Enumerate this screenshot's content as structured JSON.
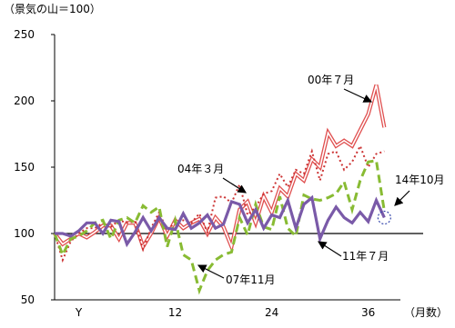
{
  "chart_data": {
    "type": "line",
    "unit_label": "（景気の山＝100）",
    "xlabel": "（月数）",
    "ylim": [
      50,
      250
    ],
    "yticks": [
      50,
      100,
      150,
      200,
      250
    ],
    "xticks": [
      {
        "x": 0,
        "label": "Y"
      },
      {
        "x": 12,
        "label": "12"
      },
      {
        "x": 24,
        "label": "24"
      },
      {
        "x": 36,
        "label": "36"
      }
    ],
    "xlim": [
      -3,
      40
    ],
    "series": [
      {
        "name": "00年７月",
        "style": "double",
        "color": "#e05050",
        "x": [
          -3,
          -2,
          -1,
          0,
          1,
          2,
          3,
          4,
          5,
          6,
          7,
          8,
          9,
          10,
          11,
          12,
          13,
          14,
          15,
          16,
          17,
          18,
          19,
          20,
          21,
          22,
          23,
          24,
          25,
          26,
          27,
          28,
          29,
          30,
          31,
          32,
          33,
          34,
          35,
          36,
          37,
          38
        ],
        "values": [
          100,
          92,
          96,
          100,
          97,
          101,
          106,
          106,
          96,
          108,
          108,
          90,
          100,
          112,
          98,
          110,
          104,
          108,
          111,
          100,
          112,
          105,
          90,
          118,
          124,
          108,
          128,
          116,
          134,
          128,
          145,
          140,
          156,
          150,
          176,
          166,
          170,
          166,
          178,
          190,
          212,
          180
        ]
      },
      {
        "name": "04年３月",
        "style": "dotted",
        "color": "#cc3333",
        "x": [
          -3,
          -2,
          -1,
          0,
          1,
          2,
          3,
          4,
          5,
          6,
          7,
          8,
          9,
          10,
          11,
          12,
          13,
          14,
          15,
          16,
          17,
          18,
          19,
          20,
          21,
          22,
          23,
          24,
          25,
          26,
          27,
          28,
          29,
          30,
          31,
          32,
          33,
          34,
          35,
          36,
          37,
          38
        ],
        "values": [
          100,
          80,
          94,
          100,
          104,
          104,
          108,
          105,
          110,
          108,
          109,
          88,
          104,
          116,
          102,
          109,
          110,
          108,
          115,
          101,
          127,
          128,
          123,
          137,
          114,
          120,
          130,
          132,
          145,
          135,
          148,
          145,
          162,
          140,
          160,
          162,
          148,
          154,
          166,
          150,
          160,
          162
        ]
      },
      {
        "name": "07年11月",
        "style": "dashed",
        "color": "#88bb33",
        "x": [
          -3,
          -2,
          -1,
          0,
          1,
          2,
          3,
          4,
          5,
          6,
          7,
          8,
          9,
          10,
          11,
          12,
          13,
          14,
          15,
          16,
          17,
          18,
          19,
          20,
          21,
          22,
          23,
          24,
          25,
          26,
          27,
          28,
          29,
          30,
          31,
          32,
          33,
          34,
          35,
          36,
          37,
          38
        ],
        "values": [
          100,
          84,
          96,
          98,
          102,
          108,
          110,
          96,
          110,
          112,
          108,
          121,
          116,
          120,
          90,
          110,
          84,
          80,
          57,
          72,
          80,
          84,
          86,
          112,
          99,
          122,
          105,
          103,
          128,
          104,
          98,
          129,
          126,
          125,
          127,
          130,
          139,
          118,
          140,
          154,
          155,
          117
        ]
      },
      {
        "name": "11年７月",
        "style": "solid",
        "color": "#7a5aa8",
        "x": [
          -3,
          -2,
          -1,
          0,
          1,
          2,
          3,
          4,
          5,
          6,
          7,
          8,
          9,
          10,
          11,
          12,
          13,
          14,
          15,
          16,
          17,
          18,
          19,
          20,
          21,
          22,
          23,
          24,
          25,
          26,
          27,
          28,
          29,
          30,
          31,
          32,
          33,
          34,
          35,
          36,
          37,
          38
        ],
        "values": [
          100,
          100,
          98,
          102,
          108,
          108,
          100,
          110,
          109,
          92,
          101,
          112,
          102,
          112,
          104,
          103,
          115,
          104,
          108,
          114,
          104,
          107,
          124,
          122,
          108,
          118,
          104,
          114,
          112,
          125,
          104,
          122,
          127,
          96,
          110,
          120,
          112,
          108,
          116,
          109,
          125,
          112
        ]
      },
      {
        "name": "14年10月",
        "style": "marker",
        "color": "#3344aa",
        "x": [
          38
        ],
        "values": [
          112
        ]
      }
    ],
    "annotations": [
      {
        "text": "00年７月",
        "series": "00年７月"
      },
      {
        "text": "04年３月",
        "series": "04年３月"
      },
      {
        "text": "14年10月",
        "series": "14年10月"
      },
      {
        "text": "11年７月",
        "series": "11年７月"
      },
      {
        "text": "07年11月",
        "series": "07年11月"
      }
    ]
  }
}
